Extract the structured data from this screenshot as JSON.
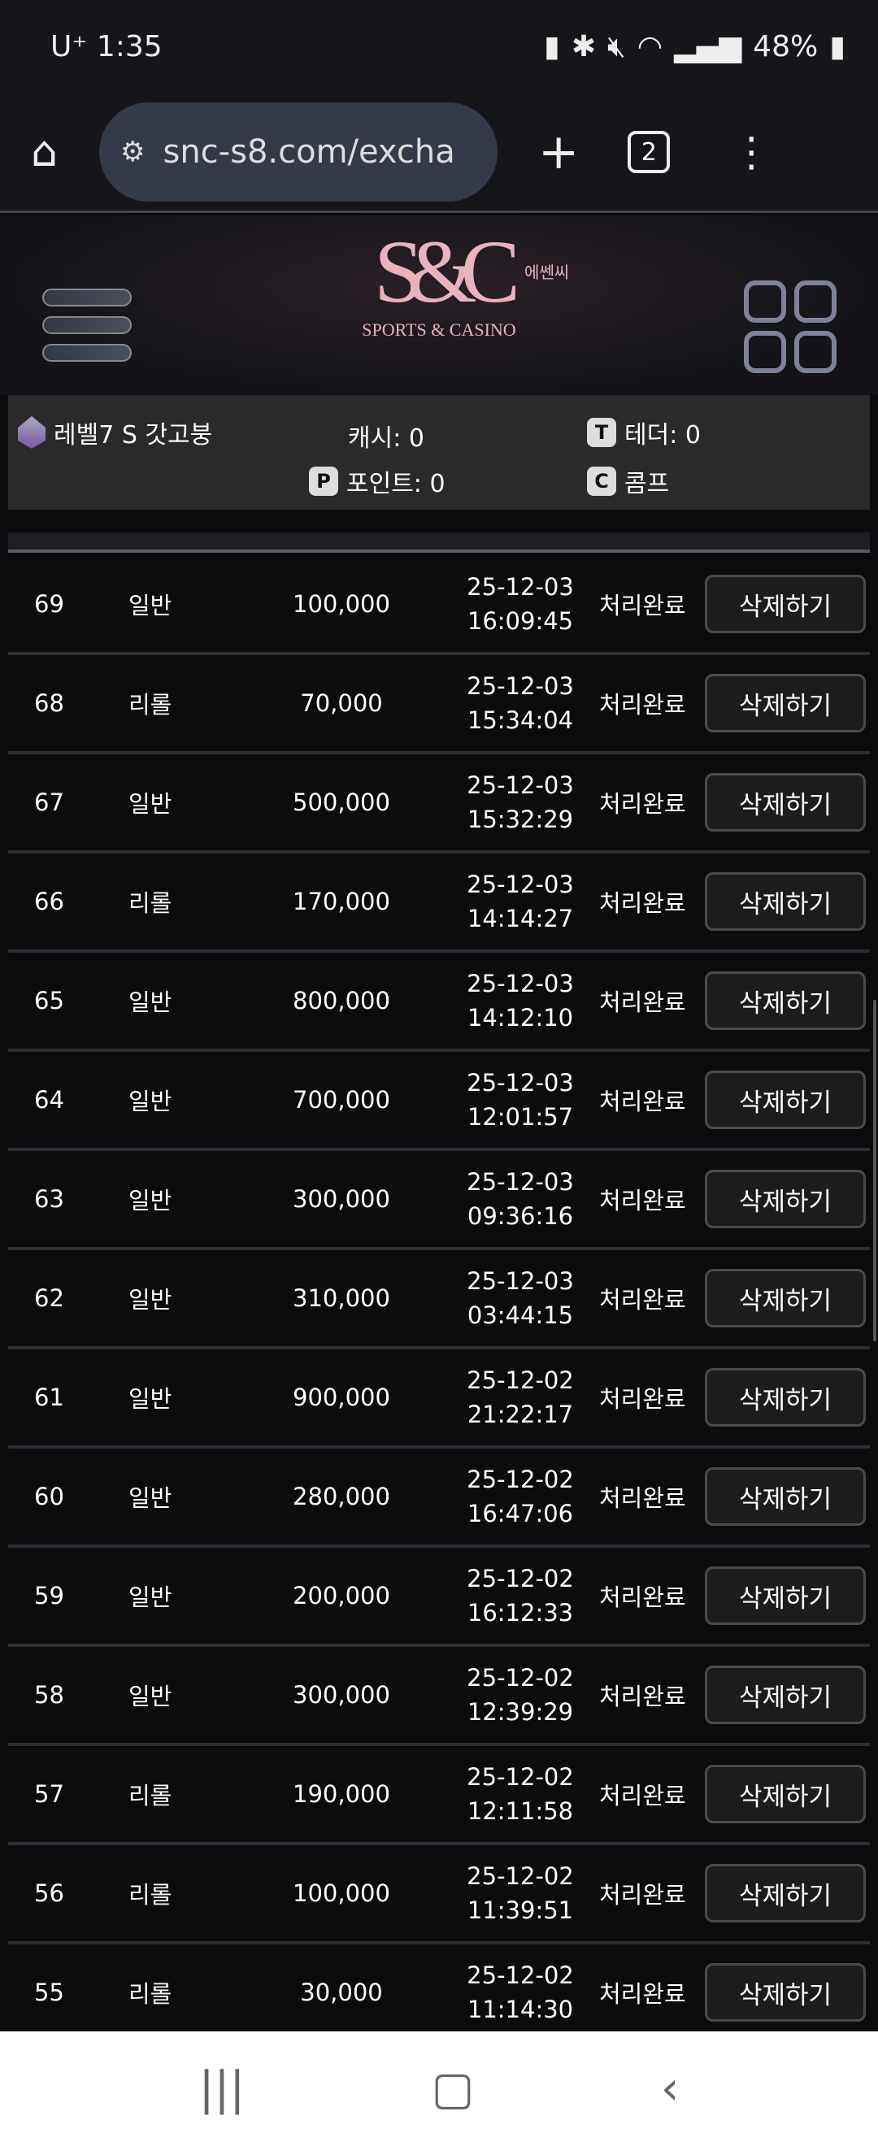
{
  "status_bar": {
    "carrier": "U⁺",
    "time": "1:35",
    "battery": "48%"
  },
  "browser": {
    "url": "snc-s8.com/excha",
    "tab_count": "2"
  },
  "logo": {
    "mark": "S&C",
    "korean": "에쎈씨",
    "tagline": "SPORTS & CASINO"
  },
  "user_info": {
    "level": "레벨7 S 갓고붕",
    "cash": "캐시: 0",
    "tether": "테더: 0",
    "points": "포인트: 0",
    "comp": "콤프",
    "tether_badge": "T",
    "points_badge": "P",
    "comp_badge": "C"
  },
  "delete_label": "삭제하기",
  "rows": [
    {
      "no": "69",
      "type": "일반",
      "amount": "100,000",
      "date": "25-12-03",
      "time": "16:09:45",
      "status": "처리완료"
    },
    {
      "no": "68",
      "type": "리롤",
      "amount": "70,000",
      "date": "25-12-03",
      "time": "15:34:04",
      "status": "처리완료"
    },
    {
      "no": "67",
      "type": "일반",
      "amount": "500,000",
      "date": "25-12-03",
      "time": "15:32:29",
      "status": "처리완료"
    },
    {
      "no": "66",
      "type": "리롤",
      "amount": "170,000",
      "date": "25-12-03",
      "time": "14:14:27",
      "status": "처리완료"
    },
    {
      "no": "65",
      "type": "일반",
      "amount": "800,000",
      "date": "25-12-03",
      "time": "14:12:10",
      "status": "처리완료"
    },
    {
      "no": "64",
      "type": "일반",
      "amount": "700,000",
      "date": "25-12-03",
      "time": "12:01:57",
      "status": "처리완료"
    },
    {
      "no": "63",
      "type": "일반",
      "amount": "300,000",
      "date": "25-12-03",
      "time": "09:36:16",
      "status": "처리완료"
    },
    {
      "no": "62",
      "type": "일반",
      "amount": "310,000",
      "date": "25-12-03",
      "time": "03:44:15",
      "status": "처리완료"
    },
    {
      "no": "61",
      "type": "일반",
      "amount": "900,000",
      "date": "25-12-02",
      "time": "21:22:17",
      "status": "처리완료"
    },
    {
      "no": "60",
      "type": "일반",
      "amount": "280,000",
      "date": "25-12-02",
      "time": "16:47:06",
      "status": "처리완료"
    },
    {
      "no": "59",
      "type": "일반",
      "amount": "200,000",
      "date": "25-12-02",
      "time": "16:12:33",
      "status": "처리완료"
    },
    {
      "no": "58",
      "type": "일반",
      "amount": "300,000",
      "date": "25-12-02",
      "time": "12:39:29",
      "status": "처리완료"
    },
    {
      "no": "57",
      "type": "리롤",
      "amount": "190,000",
      "date": "25-12-02",
      "time": "12:11:58",
      "status": "처리완료"
    },
    {
      "no": "56",
      "type": "리롤",
      "amount": "100,000",
      "date": "25-12-02",
      "time": "11:39:51",
      "status": "처리완료"
    },
    {
      "no": "55",
      "type": "리롤",
      "amount": "30,000",
      "date": "25-12-02",
      "time": "11:14:30",
      "status": "처리완료"
    }
  ]
}
